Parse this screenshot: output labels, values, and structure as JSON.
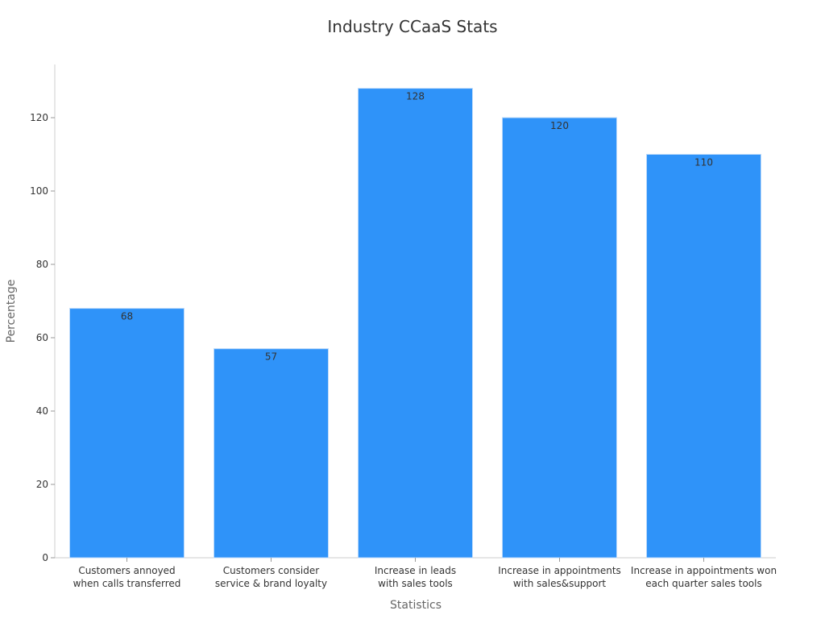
{
  "chart_data": {
    "type": "bar",
    "title": "Industry CCaaS Stats",
    "xlabel": "Statistics",
    "ylabel": "Percentage",
    "categories": [
      [
        "Customers annoyed",
        "when calls transferred"
      ],
      [
        "Customers consider",
        "service & brand loyalty"
      ],
      [
        "Increase in leads",
        "with sales tools"
      ],
      [
        "Increase in appointments",
        "with sales&support"
      ],
      [
        "Increase in appointments won",
        "each quarter sales tools"
      ]
    ],
    "values": [
      68,
      57,
      128,
      120,
      110
    ],
    "ylim": [
      0,
      135
    ],
    "yticks": [
      0,
      20,
      40,
      60,
      80,
      100,
      120
    ],
    "grid": false,
    "bar_color": "#2F93F9",
    "bar_edge_color": "#BBD9FA"
  }
}
